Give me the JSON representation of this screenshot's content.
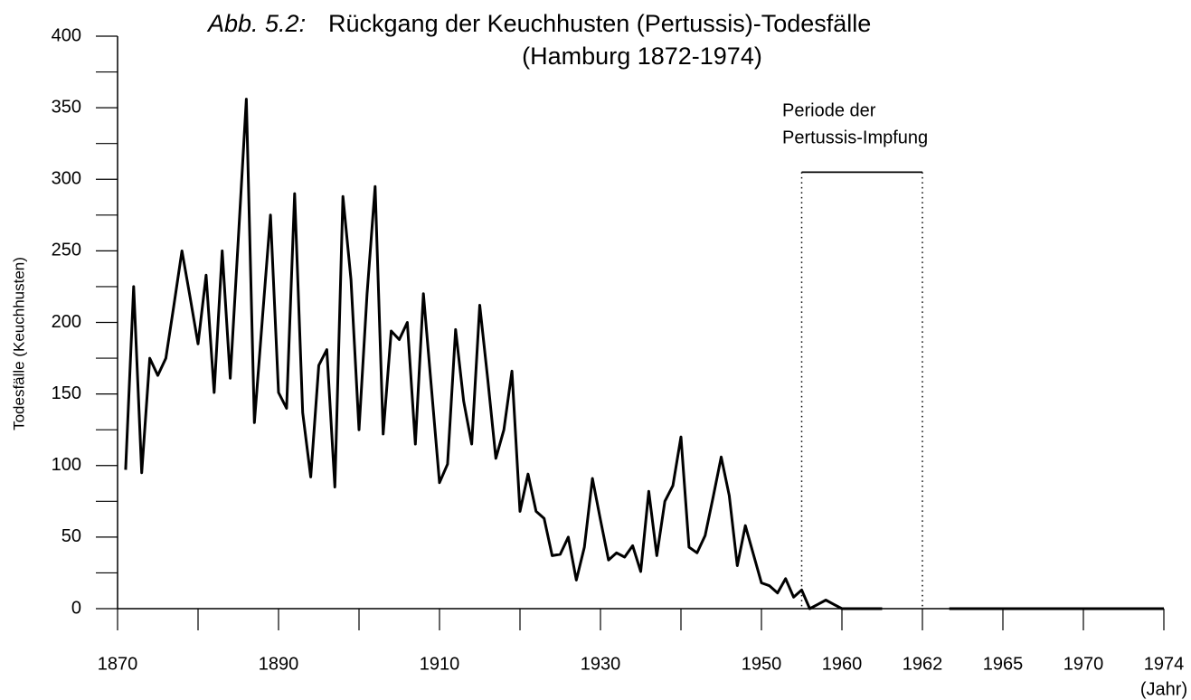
{
  "chart_data": {
    "type": "line",
    "title_prefix": "Abb. 5.2:",
    "title": "Rückgang der Keuchhusten (Pertussis)-Todesfälle",
    "subtitle": "(Hamburg 1872-1974)",
    "y_label": "Todesfälle (Keuchhusten)",
    "x_label": "(Jahr)",
    "x": [
      1871,
      1872,
      1873,
      1874,
      1875,
      1876,
      1877,
      1878,
      1879,
      1880,
      1881,
      1882,
      1883,
      1884,
      1885,
      1886,
      1887,
      1888,
      1889,
      1890,
      1891,
      1892,
      1893,
      1894,
      1895,
      1896,
      1897,
      1898,
      1899,
      1900,
      1901,
      1902,
      1903,
      1904,
      1905,
      1906,
      1907,
      1908,
      1909,
      1910,
      1911,
      1912,
      1913,
      1914,
      1915,
      1916,
      1917,
      1918,
      1919,
      1920,
      1921,
      1922,
      1923,
      1924,
      1925,
      1926,
      1927,
      1928,
      1929,
      1930,
      1931,
      1932,
      1933,
      1934,
      1935,
      1936,
      1937,
      1938,
      1939,
      1940,
      1941,
      1942,
      1943,
      1944,
      1945,
      1946,
      1947,
      1948,
      1949,
      1950,
      1951,
      1952,
      1953,
      1954,
      1955,
      1956,
      1957,
      1958,
      1959,
      1960,
      1961,
      1962,
      1963,
      1964,
      1965,
      1966,
      1967,
      1968,
      1969,
      1970,
      1971,
      1972,
      1973,
      1974
    ],
    "series": [
      {
        "color": "#000000",
        "values": [
          97,
          225,
          95,
          175,
          163,
          175,
          212,
          250,
          218,
          185,
          233,
          151,
          250,
          161,
          258,
          356,
          130,
          203,
          275,
          151,
          140,
          290,
          137,
          92,
          170,
          181,
          85,
          288,
          230,
          125,
          220,
          295,
          122,
          194,
          188,
          200,
          115,
          220,
          154,
          88,
          101,
          195,
          145,
          115,
          212,
          160,
          105,
          125,
          166,
          68,
          94,
          68,
          63,
          37,
          38,
          50,
          20,
          43,
          91,
          62,
          34,
          39,
          36,
          44,
          26,
          82,
          37,
          75,
          86,
          120,
          43,
          39,
          51,
          78,
          106,
          79,
          30,
          58,
          38,
          18,
          16,
          11,
          21,
          8,
          13,
          0,
          3,
          6,
          3,
          0,
          0,
          null,
          0,
          0,
          0,
          0,
          0,
          0,
          0,
          0,
          0,
          0,
          0,
          0
        ]
      }
    ],
    "xticks": [
      1870,
      1890,
      1910,
      1930,
      1950,
      1960,
      1962,
      1965,
      1970,
      1974
    ],
    "x_minor_ticks": [
      1880,
      1900,
      1920,
      1940
    ],
    "ylim": [
      0,
      400
    ],
    "yticks": [
      0,
      50,
      100,
      150,
      200,
      250,
      300,
      350,
      400
    ],
    "y_minor_ticks": [
      25,
      75,
      125,
      175,
      225,
      275,
      325,
      375
    ],
    "annotation": {
      "lines": [
        "Periode der",
        "Pertussis-Impfung"
      ],
      "x_start": 1955,
      "x_end": 1962,
      "y": 305
    }
  }
}
